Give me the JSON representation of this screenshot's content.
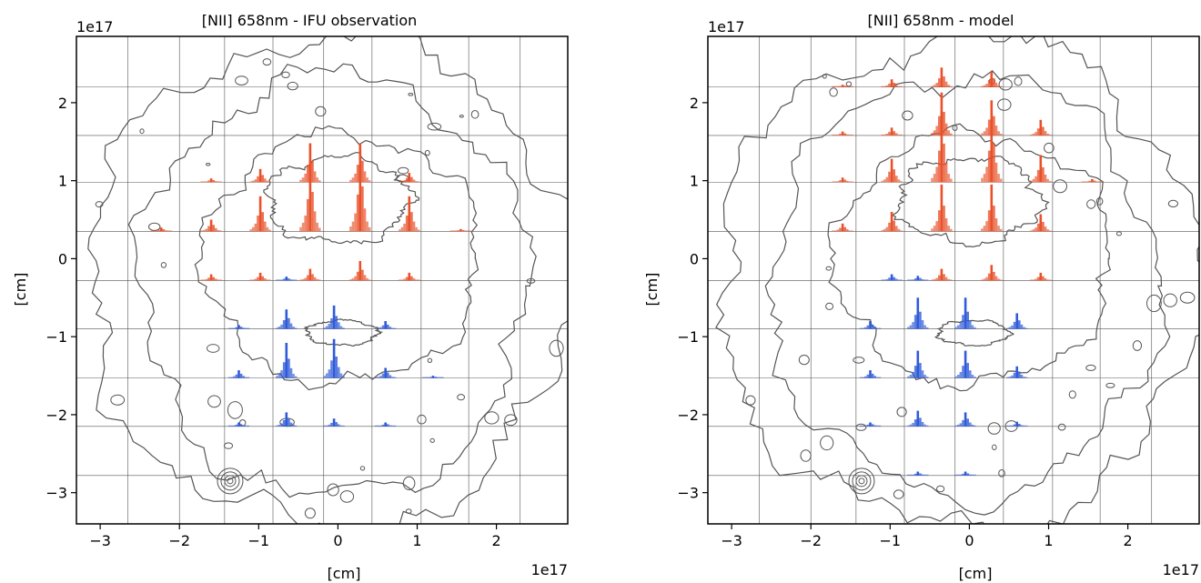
{
  "chart_data": [
    {
      "type": "bar",
      "title": "[NII] 658nm - IFU observation",
      "xlabel": "[cm]",
      "ylabel": "[cm]",
      "x_multiplier": "1e17",
      "y_multiplier": "1e17",
      "xlim": [
        -3.3e+17,
        2.9e+17
      ],
      "ylim": [
        -3.4e+17,
        2.85e+17
      ],
      "xticks": [
        -3,
        -2,
        -1,
        0,
        1,
        2
      ],
      "yticks": [
        -3,
        -2,
        -1,
        0,
        1,
        2
      ],
      "xtick_labels": [
        "−3",
        "−2",
        "−1",
        "0",
        "1",
        "2"
      ],
      "ytick_labels": [
        "−3",
        "−2",
        "−1",
        "0",
        "1",
        "2"
      ],
      "grid_x": [
        -2.65e+17,
        -2e+17,
        -1.43e+17,
        -8.2e+16,
        -1.8e+16,
        4.3e+16,
        1.05e+17,
        1.65e+17,
        2.3e+17
      ],
      "grid_y": [
        2.2e+17,
        1.58e+17,
        9.8e+16,
        3.5e+16,
        -2.8e+16,
        -9e+16,
        -1.53e+17,
        -2.15e+17,
        -2.78e+17
      ],
      "red_color": "#e8512a",
      "blue_color": "#2f5bd9",
      "spectra": [
        {
          "x": -2.23e+17,
          "y": 3.5e+16,
          "color": "red",
          "peak": 5000000000000000.0
        },
        {
          "x": -1.6e+17,
          "y": 3.5e+16,
          "color": "red",
          "peak": 1.5e+16
        },
        {
          "x": -1.6e+17,
          "y": 9.8e+16,
          "color": "red",
          "peak": 5000000000000000.0
        },
        {
          "x": -9.8e+16,
          "y": 3.5e+16,
          "color": "red",
          "peak": 4.5e+16
        },
        {
          "x": -9.8e+16,
          "y": 9.8e+16,
          "color": "red",
          "peak": 1.7e+16
        },
        {
          "x": -3.5e+16,
          "y": 3.5e+16,
          "color": "red",
          "peak": 9.2e+16
        },
        {
          "x": -3.5e+16,
          "y": 9.8e+16,
          "color": "red",
          "peak": 5e+16
        },
        {
          "x": 2.8e+16,
          "y": 3.5e+16,
          "color": "red",
          "peak": 1.05e+17
        },
        {
          "x": 2.8e+16,
          "y": 9.8e+16,
          "color": "red",
          "peak": 5e+16
        },
        {
          "x": 9e+16,
          "y": 3.5e+16,
          "color": "red",
          "peak": 4.5e+16
        },
        {
          "x": 9e+16,
          "y": 9.8e+16,
          "color": "red",
          "peak": 1.2e+16
        },
        {
          "x": 1.55e+17,
          "y": 3.5e+16,
          "color": "red",
          "peak": 3000000000000000.0
        },
        {
          "x": -1.6e+17,
          "y": -2.8e+16,
          "color": "red",
          "peak": 8000000000000000.0
        },
        {
          "x": -9.8e+16,
          "y": -2.8e+16,
          "color": "red",
          "peak": 1e+16
        },
        {
          "x": -3.5e+16,
          "y": -2.8e+16,
          "color": "red",
          "peak": 1.5e+16
        },
        {
          "x": 2.8e+16,
          "y": -2.8e+16,
          "color": "red",
          "peak": 2.5e+16
        },
        {
          "x": 9e+16,
          "y": -2.8e+16,
          "color": "red",
          "peak": 1e+16
        },
        {
          "x": -6.5e+16,
          "y": -2.8e+16,
          "color": "blue",
          "peak": 5000000000000000.0
        },
        {
          "x": -1.25e+17,
          "y": -9e+16,
          "color": "blue",
          "peak": 5000000000000000.0
        },
        {
          "x": -6.5e+16,
          "y": -9e+16,
          "color": "blue",
          "peak": 2.5e+16
        },
        {
          "x": -5000000000000000.0,
          "y": -9e+16,
          "color": "blue",
          "peak": 3e+16
        },
        {
          "x": 6e+16,
          "y": -9e+16,
          "color": "blue",
          "peak": 1e+16
        },
        {
          "x": -1.25e+17,
          "y": -1.53e+17,
          "color": "blue",
          "peak": 1e+16
        },
        {
          "x": -6.5e+16,
          "y": -1.53e+17,
          "color": "blue",
          "peak": 4.5e+16
        },
        {
          "x": -5000000000000000.0,
          "y": -1.53e+17,
          "color": "blue",
          "peak": 5e+16
        },
        {
          "x": 6e+16,
          "y": -1.53e+17,
          "color": "blue",
          "peak": 1.3e+16
        },
        {
          "x": 1.2e+17,
          "y": -1.53e+17,
          "color": "blue",
          "peak": 3000000000000000.0
        },
        {
          "x": -1.25e+17,
          "y": -2.15e+17,
          "color": "blue",
          "peak": 5000000000000000.0
        },
        {
          "x": -6.5e+16,
          "y": -2.15e+17,
          "color": "blue",
          "peak": 1.8e+16
        },
        {
          "x": -5000000000000000.0,
          "y": -2.15e+17,
          "color": "blue",
          "peak": 1e+16
        },
        {
          "x": 6e+16,
          "y": -2.15e+17,
          "color": "blue",
          "peak": 5000000000000000.0
        }
      ]
    },
    {
      "type": "bar",
      "title": "[NII] 658nm - model",
      "xlabel": "[cm]",
      "ylabel": "[cm]",
      "x_multiplier": "1e17",
      "y_multiplier": "1e17",
      "xlim": [
        -3.3e+17,
        2.9e+17
      ],
      "ylim": [
        -3.4e+17,
        2.85e+17
      ],
      "xticks": [
        -3,
        -2,
        -1,
        0,
        1,
        2
      ],
      "yticks": [
        -3,
        -2,
        -1,
        0,
        1,
        2
      ],
      "xtick_labels": [
        "−3",
        "−2",
        "−1",
        "0",
        "1",
        "2"
      ],
      "ytick_labels": [
        "−3",
        "−2",
        "−1",
        "0",
        "1",
        "2"
      ],
      "grid_x": [
        -2.65e+17,
        -2e+17,
        -1.43e+17,
        -8.2e+16,
        -1.8e+16,
        4.3e+16,
        1.05e+17,
        1.65e+17,
        2.3e+17
      ],
      "grid_y": [
        2.2e+17,
        1.58e+17,
        9.8e+16,
        3.5e+16,
        -2.8e+16,
        -9e+16,
        -1.53e+17,
        -2.15e+17,
        -2.78e+17
      ],
      "red_color": "#e8512a",
      "blue_color": "#2f5bd9",
      "spectra": [
        {
          "x": -1.6e+17,
          "y": 1.58e+17,
          "color": "red",
          "peak": 5000000000000000.0
        },
        {
          "x": -9.8e+16,
          "y": 1.58e+17,
          "color": "red",
          "peak": 1e+16
        },
        {
          "x": -3.5e+16,
          "y": 1.58e+17,
          "color": "red",
          "peak": 5.5e+16
        },
        {
          "x": 2.8e+16,
          "y": 1.58e+17,
          "color": "red",
          "peak": 4.5e+16
        },
        {
          "x": 9e+16,
          "y": 1.58e+17,
          "color": "red",
          "peak": 2e+16
        },
        {
          "x": -9.8e+16,
          "y": 2.2e+17,
          "color": "red",
          "peak": 1e+16
        },
        {
          "x": -3.5e+16,
          "y": 2.2e+17,
          "color": "red",
          "peak": 2.5e+16
        },
        {
          "x": 2.8e+16,
          "y": 2.2e+17,
          "color": "red",
          "peak": 2e+16
        },
        {
          "x": -1.6e+17,
          "y": 2.2e+17,
          "color": "red",
          "peak": 3000000000000000.0
        },
        {
          "x": -1.6e+17,
          "y": 9.8e+16,
          "color": "red",
          "peak": 6000000000000000.0
        },
        {
          "x": -9.8e+16,
          "y": 9.8e+16,
          "color": "red",
          "peak": 3e+16
        },
        {
          "x": -3.5e+16,
          "y": 9.8e+16,
          "color": "red",
          "peak": 9e+16
        },
        {
          "x": 2.8e+16,
          "y": 9.8e+16,
          "color": "red",
          "peak": 9e+16
        },
        {
          "x": 9e+16,
          "y": 9.8e+16,
          "color": "red",
          "peak": 3.5e+16
        },
        {
          "x": 1.55e+17,
          "y": 9.8e+16,
          "color": "red",
          "peak": 4000000000000000.0
        },
        {
          "x": -1.6e+17,
          "y": 3.5e+16,
          "color": "red",
          "peak": 1e+16
        },
        {
          "x": -9.8e+16,
          "y": 3.5e+16,
          "color": "red",
          "peak": 2.5e+16
        },
        {
          "x": -3.5e+16,
          "y": 3.5e+16,
          "color": "red",
          "peak": 6e+16
        },
        {
          "x": 2.8e+16,
          "y": 3.5e+16,
          "color": "red",
          "peak": 6e+16
        },
        {
          "x": 9e+16,
          "y": 3.5e+16,
          "color": "red",
          "peak": 2.2e+16
        },
        {
          "x": -3.5e+16,
          "y": -2.8e+16,
          "color": "red",
          "peak": 1.5e+16
        },
        {
          "x": 2.8e+16,
          "y": -2.8e+16,
          "color": "red",
          "peak": 2e+16
        },
        {
          "x": 9e+16,
          "y": -2.8e+16,
          "color": "red",
          "peak": 1e+16
        },
        {
          "x": -9.8e+16,
          "y": -2.8e+16,
          "color": "blue",
          "peak": 8000000000000000.0
        },
        {
          "x": -6.5e+16,
          "y": -2.8e+16,
          "color": "blue",
          "peak": 6000000000000000.0
        },
        {
          "x": -1.25e+17,
          "y": -9e+16,
          "color": "blue",
          "peak": 1e+16
        },
        {
          "x": -6.5e+16,
          "y": -9e+16,
          "color": "blue",
          "peak": 4e+16
        },
        {
          "x": -5000000000000000.0,
          "y": -9e+16,
          "color": "blue",
          "peak": 4e+16
        },
        {
          "x": 6e+16,
          "y": -9e+16,
          "color": "blue",
          "peak": 2e+16
        },
        {
          "x": -1.25e+17,
          "y": -1.53e+17,
          "color": "blue",
          "peak": 1e+16
        },
        {
          "x": -6.5e+16,
          "y": -1.53e+17,
          "color": "blue",
          "peak": 3.5e+16
        },
        {
          "x": -5000000000000000.0,
          "y": -1.53e+17,
          "color": "blue",
          "peak": 3.5e+16
        },
        {
          "x": 6e+16,
          "y": -1.53e+17,
          "color": "blue",
          "peak": 1.5e+16
        },
        {
          "x": -1.25e+17,
          "y": -2.15e+17,
          "color": "blue",
          "peak": 5000000000000000.0
        },
        {
          "x": -6.5e+16,
          "y": -2.15e+17,
          "color": "blue",
          "peak": 2e+16
        },
        {
          "x": -5000000000000000.0,
          "y": -2.15e+17,
          "color": "blue",
          "peak": 1.8e+16
        },
        {
          "x": 6e+16,
          "y": -2.15e+17,
          "color": "blue",
          "peak": 6000000000000000.0
        },
        {
          "x": -6.5e+16,
          "y": -2.78e+17,
          "color": "blue",
          "peak": 5000000000000000.0
        },
        {
          "x": -5000000000000000.0,
          "y": -2.78e+17,
          "color": "blue",
          "peak": 5000000000000000.0
        }
      ]
    }
  ]
}
